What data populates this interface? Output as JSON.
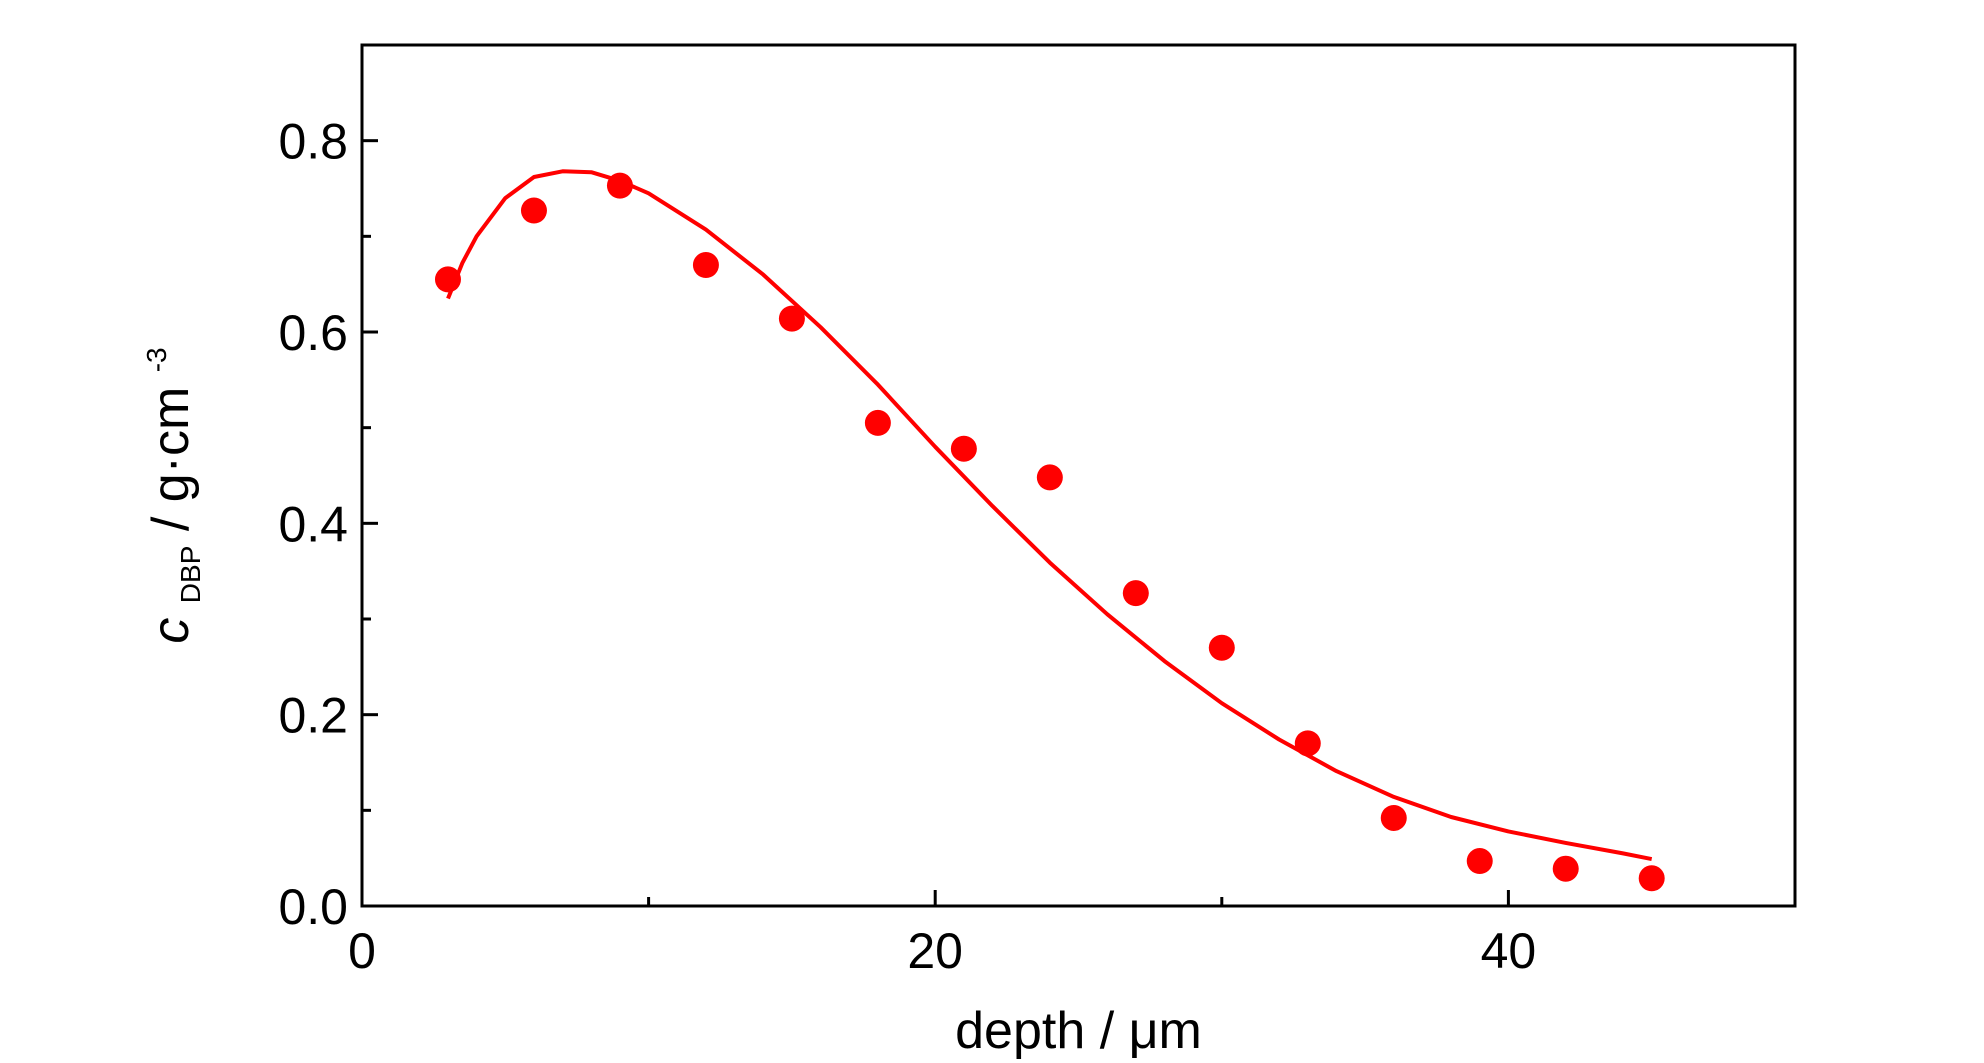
{
  "chart_data": {
    "type": "scatter",
    "xlabel": "depth / μm",
    "ylabel": {
      "symbol": "c",
      "subscript": "DBP",
      "unit": " / g·cm",
      "superscript": "-3"
    },
    "xlim": [
      0,
      50
    ],
    "ylim": [
      0,
      0.9
    ],
    "x_ticks": [
      0,
      20,
      40
    ],
    "x_minor_ticks": [
      10,
      30
    ],
    "y_ticks": [
      0.0,
      0.2,
      0.4,
      0.6,
      0.8
    ],
    "y_tick_labels": [
      "0.0",
      "0.2",
      "0.4",
      "0.6",
      "0.8"
    ],
    "y_minor_ticks": [
      0.1,
      0.3,
      0.5,
      0.7
    ],
    "grid": false,
    "legend": "none",
    "colors": {
      "points": "#ff0000",
      "fit_line": "#ff0000",
      "axes": "#000000"
    },
    "series": [
      {
        "kind": "points",
        "x": [
          3,
          6,
          9,
          12,
          15,
          18,
          21,
          24,
          27,
          30,
          33,
          36,
          39,
          42,
          45
        ],
        "y": [
          0.655,
          0.727,
          0.753,
          0.67,
          0.614,
          0.505,
          0.478,
          0.448,
          0.327,
          0.27,
          0.17,
          0.092,
          0.047,
          0.039,
          0.029
        ]
      },
      {
        "kind": "line",
        "x": [
          3,
          3.5,
          4,
          5,
          6,
          7,
          8,
          9,
          10,
          12,
          14,
          16,
          18,
          20,
          22,
          24,
          26,
          28,
          30,
          32,
          34,
          36,
          38,
          40,
          42,
          44,
          45
        ],
        "y": [
          0.635,
          0.672,
          0.7,
          0.74,
          0.762,
          0.768,
          0.767,
          0.758,
          0.745,
          0.707,
          0.66,
          0.605,
          0.545,
          0.48,
          0.418,
          0.359,
          0.305,
          0.256,
          0.212,
          0.174,
          0.141,
          0.114,
          0.093,
          0.078,
          0.066,
          0.055,
          0.049
        ]
      }
    ]
  }
}
